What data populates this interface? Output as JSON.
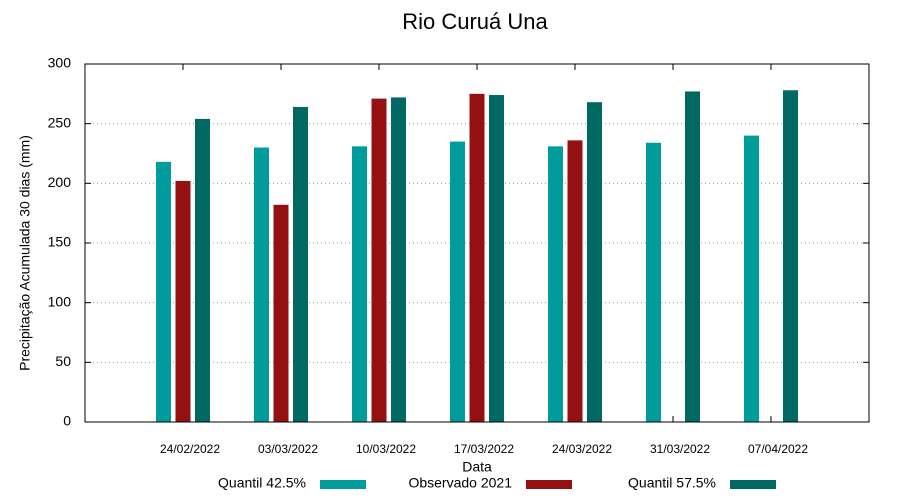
{
  "chart_data": {
    "type": "bar",
    "title": "Rio Curuá Una",
    "x_label": "Data",
    "y_label": "Precipitação Acumulada 30 dias (mm)",
    "categories": [
      "24/02/2022",
      "03/03/2022",
      "10/03/2022",
      "17/03/2022",
      "24/03/2022",
      "31/03/2022",
      "07/04/2022"
    ],
    "series": [
      {
        "name": "Quantil 42.5%",
        "color": "#009b9b",
        "values": [
          218,
          230,
          231,
          235,
          231,
          234,
          240
        ]
      },
      {
        "name": "Observado 2021",
        "color": "#951010",
        "values": [
          202,
          182,
          271,
          275,
          236,
          null,
          null
        ]
      },
      {
        "name": "Quantil 57.5%",
        "color": "#006964",
        "values": [
          254,
          264,
          272,
          274,
          268,
          277,
          278
        ]
      }
    ],
    "ylim": [
      0,
      300
    ],
    "yticks": [
      0,
      50,
      100,
      150,
      200,
      250,
      300
    ],
    "grid": true,
    "legend": "bottom"
  }
}
